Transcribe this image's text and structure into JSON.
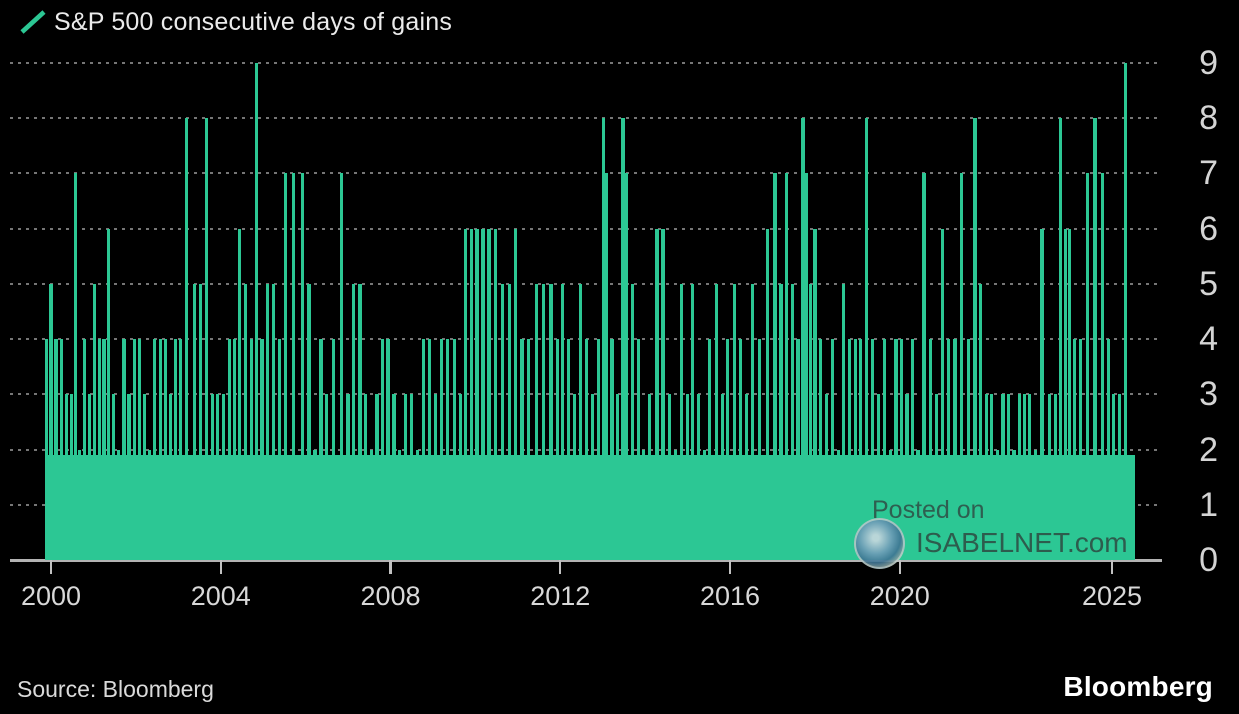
{
  "title": "S&P 500 consecutive days of gains",
  "footer": {
    "source_text": "Source: Bloomberg",
    "brand": "Bloomberg"
  },
  "watermark": {
    "line1": "Posted on",
    "line2": "ISABELNET.com"
  },
  "colors": {
    "background": "#000000",
    "bar": "#2cc794",
    "grid": "#767676",
    "zero_line": "#b3b3b3",
    "axis_text": "#d5d5d5",
    "title_text": "#ebebeb",
    "watermark_text": "#2e5f50"
  },
  "chart_data": {
    "type": "bar",
    "title": "S&P 500 consecutive days of gains",
    "xlabel": "",
    "ylabel": "consecutive days of gains",
    "ylim": [
      0,
      9
    ],
    "yticks": [
      0,
      1,
      2,
      3,
      4,
      5,
      6,
      7,
      8,
      9
    ],
    "xticks": [
      2000,
      2004,
      2008,
      2012,
      2016,
      2020,
      2025
    ],
    "x_range": [
      1999.85,
      2025.5
    ],
    "grid": "horizontal-dotted",
    "legend_position": "top-left",
    "bars": [
      [
        1999.9,
        4
      ],
      [
        2000.0,
        5
      ],
      [
        2000.12,
        4
      ],
      [
        2000.24,
        4
      ],
      [
        2000.36,
        3
      ],
      [
        2000.48,
        3
      ],
      [
        2000.57,
        7
      ],
      [
        2000.68,
        2
      ],
      [
        2000.78,
        4
      ],
      [
        2000.9,
        3
      ],
      [
        2001.02,
        5
      ],
      [
        2001.14,
        4
      ],
      [
        2001.25,
        4
      ],
      [
        2001.35,
        6
      ],
      [
        2001.48,
        3
      ],
      [
        2001.6,
        2
      ],
      [
        2001.72,
        4
      ],
      [
        2001.84,
        3
      ],
      [
        2001.96,
        4
      ],
      [
        2002.08,
        4
      ],
      [
        2002.2,
        3
      ],
      [
        2002.32,
        2
      ],
      [
        2002.44,
        4
      ],
      [
        2002.58,
        4
      ],
      [
        2002.7,
        4
      ],
      [
        2002.82,
        3
      ],
      [
        2002.94,
        4
      ],
      [
        2003.06,
        4
      ],
      [
        2003.2,
        8
      ],
      [
        2003.38,
        5
      ],
      [
        2003.52,
        5
      ],
      [
        2003.67,
        8
      ],
      [
        2003.8,
        3
      ],
      [
        2003.93,
        3
      ],
      [
        2004.06,
        3
      ],
      [
        2004.2,
        4
      ],
      [
        2004.33,
        4
      ],
      [
        2004.45,
        6
      ],
      [
        2004.58,
        5
      ],
      [
        2004.72,
        4
      ],
      [
        2004.85,
        9
      ],
      [
        2004.97,
        4
      ],
      [
        2005.1,
        5
      ],
      [
        2005.25,
        5
      ],
      [
        2005.38,
        4
      ],
      [
        2005.52,
        7
      ],
      [
        2005.72,
        7
      ],
      [
        2005.92,
        7
      ],
      [
        2006.08,
        5
      ],
      [
        2006.22,
        2
      ],
      [
        2006.36,
        4
      ],
      [
        2006.5,
        3
      ],
      [
        2006.65,
        4
      ],
      [
        2006.85,
        7
      ],
      [
        2007.0,
        3
      ],
      [
        2007.12,
        5
      ],
      [
        2007.28,
        5
      ],
      [
        2007.42,
        3
      ],
      [
        2007.55,
        2
      ],
      [
        2007.68,
        3
      ],
      [
        2007.82,
        4
      ],
      [
        2007.94,
        4
      ],
      [
        2008.08,
        3
      ],
      [
        2008.22,
        2
      ],
      [
        2008.36,
        3
      ],
      [
        2008.5,
        3
      ],
      [
        2008.64,
        2
      ],
      [
        2008.78,
        4
      ],
      [
        2008.92,
        4
      ],
      [
        2009.06,
        3
      ],
      [
        2009.2,
        4
      ],
      [
        2009.35,
        4
      ],
      [
        2009.5,
        4
      ],
      [
        2009.64,
        3
      ],
      [
        2009.76,
        6
      ],
      [
        2009.9,
        6
      ],
      [
        2010.04,
        6
      ],
      [
        2010.18,
        6
      ],
      [
        2010.32,
        6
      ],
      [
        2010.48,
        6
      ],
      [
        2010.64,
        5
      ],
      [
        2010.8,
        5
      ],
      [
        2010.95,
        6
      ],
      [
        2011.1,
        4
      ],
      [
        2011.26,
        4
      ],
      [
        2011.44,
        5
      ],
      [
        2011.6,
        5
      ],
      [
        2011.78,
        5
      ],
      [
        2011.93,
        4
      ],
      [
        2012.06,
        5
      ],
      [
        2012.2,
        4
      ],
      [
        2012.34,
        3
      ],
      [
        2012.48,
        5
      ],
      [
        2012.62,
        4
      ],
      [
        2012.76,
        3
      ],
      [
        2012.9,
        4
      ],
      [
        2013.02,
        8
      ],
      [
        2013.09,
        7
      ],
      [
        2013.22,
        4
      ],
      [
        2013.35,
        3
      ],
      [
        2013.48,
        8
      ],
      [
        2013.55,
        7
      ],
      [
        2013.7,
        5
      ],
      [
        2013.84,
        4
      ],
      [
        2013.96,
        2
      ],
      [
        2014.1,
        3
      ],
      [
        2014.28,
        6
      ],
      [
        2014.42,
        6
      ],
      [
        2014.58,
        3
      ],
      [
        2014.72,
        2
      ],
      [
        2014.86,
        5
      ],
      [
        2015.0,
        3
      ],
      [
        2015.12,
        5
      ],
      [
        2015.26,
        3
      ],
      [
        2015.4,
        2
      ],
      [
        2015.52,
        4
      ],
      [
        2015.68,
        5
      ],
      [
        2015.82,
        3
      ],
      [
        2015.94,
        4
      ],
      [
        2016.1,
        5
      ],
      [
        2016.24,
        4
      ],
      [
        2016.38,
        3
      ],
      [
        2016.52,
        5
      ],
      [
        2016.7,
        4
      ],
      [
        2016.88,
        6
      ],
      [
        2017.06,
        7
      ],
      [
        2017.2,
        5
      ],
      [
        2017.34,
        7
      ],
      [
        2017.48,
        5
      ],
      [
        2017.6,
        4
      ],
      [
        2017.72,
        8
      ],
      [
        2017.79,
        7
      ],
      [
        2017.9,
        5
      ],
      [
        2018.0,
        6
      ],
      [
        2018.14,
        4
      ],
      [
        2018.28,
        3
      ],
      [
        2018.42,
        4
      ],
      [
        2018.55,
        2
      ],
      [
        2018.68,
        5
      ],
      [
        2018.82,
        4
      ],
      [
        2018.95,
        4
      ],
      [
        2019.08,
        4
      ],
      [
        2019.22,
        8
      ],
      [
        2019.36,
        4
      ],
      [
        2019.5,
        3
      ],
      [
        2019.64,
        4
      ],
      [
        2019.78,
        2
      ],
      [
        2019.91,
        4
      ],
      [
        2020.04,
        4
      ],
      [
        2020.17,
        3
      ],
      [
        2020.3,
        4
      ],
      [
        2020.43,
        2
      ],
      [
        2020.57,
        7
      ],
      [
        2020.72,
        4
      ],
      [
        2020.86,
        3
      ],
      [
        2021.0,
        6
      ],
      [
        2021.15,
        4
      ],
      [
        2021.3,
        4
      ],
      [
        2021.46,
        7
      ],
      [
        2021.62,
        4
      ],
      [
        2021.77,
        8
      ],
      [
        2021.91,
        5
      ],
      [
        2022.04,
        3
      ],
      [
        2022.17,
        3
      ],
      [
        2022.3,
        2
      ],
      [
        2022.43,
        3
      ],
      [
        2022.56,
        3
      ],
      [
        2022.69,
        2
      ],
      [
        2022.82,
        3
      ],
      [
        2022.94,
        3
      ],
      [
        2023.06,
        3
      ],
      [
        2023.2,
        2
      ],
      [
        2023.35,
        6
      ],
      [
        2023.52,
        3
      ],
      [
        2023.66,
        3
      ],
      [
        2023.78,
        8
      ],
      [
        2023.9,
        6
      ],
      [
        2023.99,
        6
      ],
      [
        2024.12,
        4
      ],
      [
        2024.26,
        4
      ],
      [
        2024.43,
        7
      ],
      [
        2024.6,
        8
      ],
      [
        2024.78,
        7
      ],
      [
        2024.91,
        4
      ],
      [
        2025.04,
        3
      ],
      [
        2025.17,
        3
      ],
      [
        2025.31,
        9
      ]
    ]
  }
}
